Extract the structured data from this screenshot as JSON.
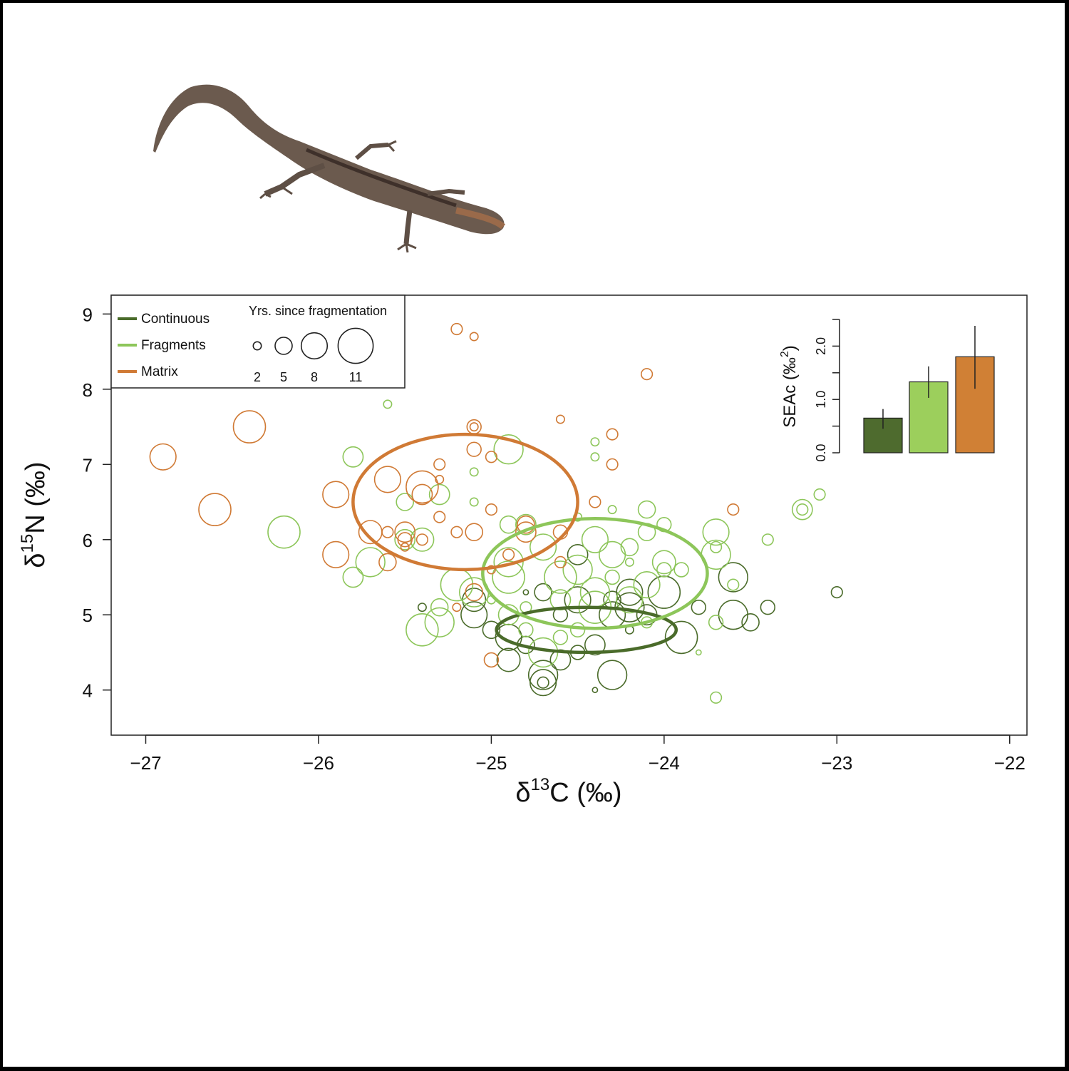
{
  "chart_data": [
    {
      "type": "scatter",
      "xlabel_main": "δ",
      "xlabel_sup": "13",
      "xlabel_rest": "C (‰)",
      "ylabel_main": "δ",
      "ylabel_sup": "15",
      "ylabel_rest": "N (‰)",
      "xlim": [
        -27.2,
        -21.9
      ],
      "ylim": [
        3.4,
        9.25
      ],
      "xticks": [
        -27,
        -26,
        -25,
        -24,
        -23,
        -22
      ],
      "xtick_labels": [
        "−27",
        "−26",
        "−25",
        "−24",
        "−23",
        "−22"
      ],
      "yticks": [
        4,
        5,
        6,
        7,
        8,
        9
      ],
      "ytick_labels": [
        "4",
        "5",
        "6",
        "7",
        "8",
        "9"
      ],
      "grid": false,
      "legend_placement": "top-left",
      "legend": {
        "entries": [
          "Continuous",
          "Fragments",
          "Matrix"
        ],
        "size_title": "Yrs. since fragmentation",
        "size_values": [
          2,
          5,
          8,
          11
        ],
        "size_labels": [
          "2",
          "5",
          "8",
          "11"
        ]
      },
      "colors": {
        "Continuous": "#4a6b2a",
        "Fragments": "#8dc65a",
        "Matrix": "#d07a35"
      },
      "series": [
        {
          "name": "Continuous",
          "ellipse": {
            "cx": -24.45,
            "cy": 4.8,
            "rx": 0.52,
            "ry": 0.3
          },
          "points": [
            {
              "x": -24.2,
              "y": 5.3,
              "size": 8
            },
            {
              "x": -24.3,
              "y": 5.0,
              "size": 8
            },
            {
              "x": -24.2,
              "y": 5.1,
              "size": 9
            },
            {
              "x": -24.0,
              "y": 5.3,
              "size": 10
            },
            {
              "x": -23.9,
              "y": 4.7,
              "size": 10
            },
            {
              "x": -23.6,
              "y": 5.0,
              "size": 9
            },
            {
              "x": -23.6,
              "y": 5.5,
              "size": 9
            },
            {
              "x": -23.5,
              "y": 4.9,
              "size": 5
            },
            {
              "x": -23.4,
              "y": 5.1,
              "size": 4
            },
            {
              "x": -24.5,
              "y": 5.8,
              "size": 6
            },
            {
              "x": -24.3,
              "y": 4.2,
              "size": 9
            },
            {
              "x": -24.7,
              "y": 4.1,
              "size": 8
            },
            {
              "x": -24.7,
              "y": 4.2,
              "size": 9
            },
            {
              "x": -24.7,
              "y": 4.1,
              "size": 3
            },
            {
              "x": -24.6,
              "y": 4.4,
              "size": 6
            },
            {
              "x": -24.9,
              "y": 4.4,
              "size": 7
            },
            {
              "x": -24.9,
              "y": 4.7,
              "size": 8
            },
            {
              "x": -25.0,
              "y": 4.8,
              "size": 5
            },
            {
              "x": -25.1,
              "y": 5.2,
              "size": 7
            },
            {
              "x": -25.1,
              "y": 5.0,
              "size": 8
            },
            {
              "x": -24.8,
              "y": 4.6,
              "size": 5
            },
            {
              "x": -24.7,
              "y": 5.3,
              "size": 5
            },
            {
              "x": -24.5,
              "y": 4.5,
              "size": 4
            },
            {
              "x": -24.4,
              "y": 4.6,
              "size": 6
            },
            {
              "x": -24.5,
              "y": 5.2,
              "size": 8
            },
            {
              "x": -24.6,
              "y": 5.0,
              "size": 4
            },
            {
              "x": -24.1,
              "y": 5.0,
              "size": 6
            },
            {
              "x": -24.2,
              "y": 4.8,
              "size": 2
            },
            {
              "x": -24.3,
              "y": 5.2,
              "size": 5
            },
            {
              "x": -23.8,
              "y": 5.1,
              "size": 4
            },
            {
              "x": -23.0,
              "y": 5.3,
              "size": 3
            },
            {
              "x": -25.4,
              "y": 5.1,
              "size": 2
            },
            {
              "x": -24.8,
              "y": 5.3,
              "size": 1
            },
            {
              "x": -24.4,
              "y": 4.0,
              "size": 1
            }
          ]
        },
        {
          "name": "Fragments",
          "ellipse": {
            "cx": -24.4,
            "cy": 5.55,
            "rx": 0.65,
            "ry": 0.73
          },
          "points": [
            {
              "x": -25.6,
              "y": 7.8,
              "size": 2
            },
            {
              "x": -25.8,
              "y": 7.1,
              "size": 6
            },
            {
              "x": -24.9,
              "y": 7.2,
              "size": 9
            },
            {
              "x": -25.1,
              "y": 6.9,
              "size": 2
            },
            {
              "x": -25.3,
              "y": 6.6,
              "size": 6
            },
            {
              "x": -25.1,
              "y": 6.5,
              "size": 2
            },
            {
              "x": -26.2,
              "y": 6.1,
              "size": 10
            },
            {
              "x": -25.7,
              "y": 5.7,
              "size": 9
            },
            {
              "x": -25.8,
              "y": 5.5,
              "size": 6
            },
            {
              "x": -25.4,
              "y": 6.0,
              "size": 7
            },
            {
              "x": -25.5,
              "y": 6.0,
              "size": 6
            },
            {
              "x": -25.5,
              "y": 6.5,
              "size": 5
            },
            {
              "x": -25.1,
              "y": 5.3,
              "size": 9
            },
            {
              "x": -25.2,
              "y": 5.4,
              "size": 10
            },
            {
              "x": -25.3,
              "y": 4.9,
              "size": 9
            },
            {
              "x": -25.3,
              "y": 5.1,
              "size": 5
            },
            {
              "x": -24.9,
              "y": 6.2,
              "size": 5
            },
            {
              "x": -24.8,
              "y": 6.2,
              "size": 6
            },
            {
              "x": -24.9,
              "y": 5.7,
              "size": 9
            },
            {
              "x": -24.9,
              "y": 5.5,
              "size": 10
            },
            {
              "x": -24.6,
              "y": 5.5,
              "size": 10
            },
            {
              "x": -24.7,
              "y": 5.9,
              "size": 8
            },
            {
              "x": -24.4,
              "y": 6.0,
              "size": 8
            },
            {
              "x": -24.5,
              "y": 5.6,
              "size": 9
            },
            {
              "x": -24.3,
              "y": 5.8,
              "size": 8
            },
            {
              "x": -24.2,
              "y": 5.9,
              "size": 5
            },
            {
              "x": -24.4,
              "y": 5.3,
              "size": 9
            },
            {
              "x": -24.4,
              "y": 5.1,
              "size": 10
            },
            {
              "x": -24.2,
              "y": 5.2,
              "size": 8
            },
            {
              "x": -24.3,
              "y": 5.5,
              "size": 4
            },
            {
              "x": -24.0,
              "y": 5.7,
              "size": 7
            },
            {
              "x": -24.0,
              "y": 5.6,
              "size": 4
            },
            {
              "x": -24.1,
              "y": 6.1,
              "size": 5
            },
            {
              "x": -24.0,
              "y": 6.2,
              "size": 4
            },
            {
              "x": -24.1,
              "y": 6.4,
              "size": 5
            },
            {
              "x": -24.1,
              "y": 5.4,
              "size": 8
            },
            {
              "x": -23.9,
              "y": 5.6,
              "size": 4
            },
            {
              "x": -23.7,
              "y": 6.1,
              "size": 8
            },
            {
              "x": -23.7,
              "y": 5.8,
              "size": 9
            },
            {
              "x": -23.7,
              "y": 5.9,
              "size": 3
            },
            {
              "x": -23.6,
              "y": 5.4,
              "size": 3
            },
            {
              "x": -23.7,
              "y": 4.9,
              "size": 4
            },
            {
              "x": -23.4,
              "y": 6.0,
              "size": 3
            },
            {
              "x": -23.2,
              "y": 6.4,
              "size": 6
            },
            {
              "x": -23.2,
              "y": 6.4,
              "size": 3
            },
            {
              "x": -23.1,
              "y": 6.6,
              "size": 3
            },
            {
              "x": -23.7,
              "y": 3.9,
              "size": 3
            },
            {
              "x": -24.4,
              "y": 7.3,
              "size": 2
            },
            {
              "x": -24.4,
              "y": 7.1,
              "size": 2
            },
            {
              "x": -24.6,
              "y": 4.7,
              "size": 4
            },
            {
              "x": -24.7,
              "y": 4.5,
              "size": 9
            },
            {
              "x": -24.5,
              "y": 4.8,
              "size": 4
            },
            {
              "x": -24.6,
              "y": 5.2,
              "size": 6
            },
            {
              "x": -24.9,
              "y": 5.0,
              "size": 6
            },
            {
              "x": -25.4,
              "y": 4.8,
              "size": 10
            },
            {
              "x": -24.8,
              "y": 4.8,
              "size": 4
            },
            {
              "x": -24.1,
              "y": 4.9,
              "size": 3
            },
            {
              "x": -23.8,
              "y": 4.5,
              "size": 1
            },
            {
              "x": -24.3,
              "y": 6.4,
              "size": 2
            },
            {
              "x": -24.2,
              "y": 5.7,
              "size": 2
            },
            {
              "x": -25.0,
              "y": 5.2,
              "size": 2
            },
            {
              "x": -24.8,
              "y": 5.1,
              "size": 3
            },
            {
              "x": -24.5,
              "y": 6.3,
              "size": 2
            }
          ]
        },
        {
          "name": "Matrix",
          "ellipse": {
            "cx": -25.15,
            "cy": 6.5,
            "rx": 0.65,
            "ry": 0.9
          },
          "points": [
            {
              "x": -25.2,
              "y": 8.8,
              "size": 3
            },
            {
              "x": -25.1,
              "y": 8.7,
              "size": 2
            },
            {
              "x": -24.1,
              "y": 8.2,
              "size": 3
            },
            {
              "x": -24.6,
              "y": 7.6,
              "size": 2
            },
            {
              "x": -24.3,
              "y": 7.4,
              "size": 3
            },
            {
              "x": -24.3,
              "y": 7.0,
              "size": 3
            },
            {
              "x": -26.4,
              "y": 7.5,
              "size": 10
            },
            {
              "x": -26.9,
              "y": 7.1,
              "size": 8
            },
            {
              "x": -26.6,
              "y": 6.4,
              "size": 10
            },
            {
              "x": -25.9,
              "y": 6.6,
              "size": 8
            },
            {
              "x": -25.9,
              "y": 5.8,
              "size": 8
            },
            {
              "x": -25.7,
              "y": 6.1,
              "size": 7
            },
            {
              "x": -25.6,
              "y": 6.8,
              "size": 8
            },
            {
              "x": -25.4,
              "y": 6.7,
              "size": 10
            },
            {
              "x": -25.4,
              "y": 6.6,
              "size": 6
            },
            {
              "x": -25.5,
              "y": 6.1,
              "size": 6
            },
            {
              "x": -25.5,
              "y": 6.0,
              "size": 4
            },
            {
              "x": -25.5,
              "y": 5.9,
              "size": 2
            },
            {
              "x": -25.6,
              "y": 5.7,
              "size": 5
            },
            {
              "x": -25.6,
              "y": 6.1,
              "size": 3
            },
            {
              "x": -25.4,
              "y": 6.0,
              "size": 3
            },
            {
              "x": -25.3,
              "y": 7.0,
              "size": 3
            },
            {
              "x": -25.3,
              "y": 6.3,
              "size": 3
            },
            {
              "x": -25.3,
              "y": 6.8,
              "size": 2
            },
            {
              "x": -25.2,
              "y": 6.1,
              "size": 3
            },
            {
              "x": -25.1,
              "y": 7.5,
              "size": 4
            },
            {
              "x": -25.1,
              "y": 7.5,
              "size": 2
            },
            {
              "x": -25.1,
              "y": 7.2,
              "size": 4
            },
            {
              "x": -25.0,
              "y": 7.1,
              "size": 3
            },
            {
              "x": -25.1,
              "y": 6.1,
              "size": 5
            },
            {
              "x": -25.0,
              "y": 6.4,
              "size": 3
            },
            {
              "x": -24.9,
              "y": 5.8,
              "size": 3
            },
            {
              "x": -24.8,
              "y": 6.2,
              "size": 5
            },
            {
              "x": -24.8,
              "y": 6.1,
              "size": 6
            },
            {
              "x": -24.6,
              "y": 6.1,
              "size": 4
            },
            {
              "x": -24.6,
              "y": 5.7,
              "size": 3
            },
            {
              "x": -24.4,
              "y": 6.5,
              "size": 3
            },
            {
              "x": -23.6,
              "y": 6.4,
              "size": 3
            },
            {
              "x": -25.0,
              "y": 4.4,
              "size": 4
            },
            {
              "x": -25.0,
              "y": 5.6,
              "size": 2
            },
            {
              "x": -25.2,
              "y": 5.1,
              "size": 2
            },
            {
              "x": -25.1,
              "y": 5.3,
              "size": 5
            }
          ]
        }
      ]
    },
    {
      "type": "bar",
      "ylabel": "SEAc (‰",
      "ylabel_sup": "2",
      "ylabel_close": ")",
      "ylim": [
        0,
        2.5
      ],
      "yticks": [
        0,
        0.5,
        1.0,
        1.5,
        2.0,
        2.5
      ],
      "ytick_labels": [
        "0.0",
        "",
        "1.0",
        "",
        "2.0",
        ""
      ],
      "categories": [
        "Continuous",
        "Fragments",
        "Matrix"
      ],
      "values": [
        0.65,
        1.33,
        1.8
      ],
      "errors_low": [
        0.45,
        1.03,
        1.2
      ],
      "errors_high": [
        0.82,
        1.62,
        2.38
      ],
      "colors": [
        "#4e6b2e",
        "#9ccf5c",
        "#d08035"
      ]
    }
  ]
}
